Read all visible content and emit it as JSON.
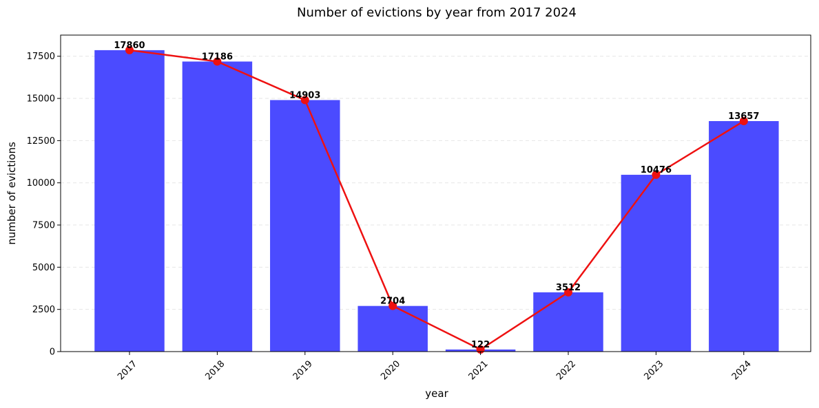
{
  "chart_data": {
    "type": "bar",
    "title": "Number of evictions by year from 2017 2024",
    "xlabel": "year",
    "ylabel": "number of evictions",
    "categories": [
      "2017",
      "2018",
      "2019",
      "2020",
      "2021",
      "2022",
      "2023",
      "2024"
    ],
    "values": [
      17860,
      17186,
      14903,
      2704,
      122,
      3512,
      10476,
      13657
    ],
    "data_labels": [
      "17860",
      "17186",
      "14903",
      "2704",
      "122",
      "3512",
      "10476",
      "13657"
    ],
    "overlay": {
      "type": "line",
      "values": [
        17860,
        17186,
        14903,
        2704,
        122,
        3512,
        10476,
        13657
      ],
      "markers": "circle"
    },
    "ylim": [
      0,
      18753
    ],
    "yticks": [
      0,
      2500,
      5000,
      7500,
      10000,
      12500,
      15000,
      17500
    ],
    "ytick_labels": [
      "0",
      "2500",
      "5000",
      "7500",
      "10000",
      "12500",
      "15000",
      "17500"
    ],
    "xtick_rotation_deg": 45,
    "grid": "y-dashed",
    "legend": "none",
    "colors": {
      "bar": "#4b4bff",
      "line": "#ee1111",
      "grid": "#e6e6e6",
      "axis": "#000000"
    }
  }
}
